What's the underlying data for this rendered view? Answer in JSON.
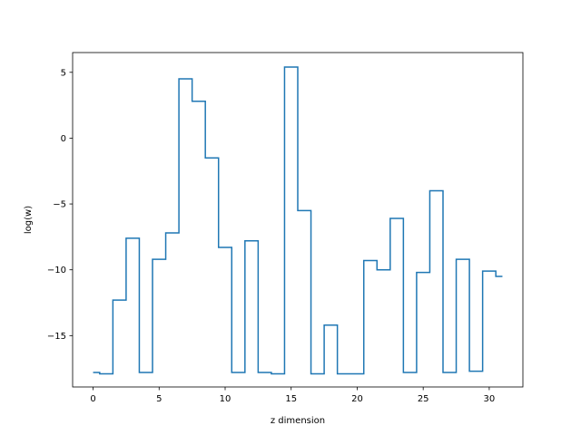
{
  "chart_data": {
    "type": "line",
    "drawstyle": "steps-mid",
    "xlabel": "z dimension",
    "ylabel": "log(w)",
    "xlim": [
      -1.55,
      32.55
    ],
    "ylim": [
      -18.9,
      6.5
    ],
    "xticks": [
      0,
      5,
      10,
      15,
      20,
      25,
      30
    ],
    "yticks": [
      -15,
      -10,
      -5,
      0,
      5
    ],
    "grid": false,
    "line_color": "#1f77b4",
    "series": [
      {
        "x": [
          0,
          1,
          2,
          3,
          4,
          5,
          6,
          7,
          8,
          9,
          10,
          11,
          12,
          13,
          14,
          15,
          16,
          17,
          18,
          19,
          20,
          21,
          22,
          23,
          24,
          25,
          26,
          27,
          28,
          29,
          30,
          31
        ],
        "values": [
          -17.8,
          -17.9,
          -12.3,
          -7.6,
          -17.8,
          -9.2,
          -7.2,
          4.5,
          2.8,
          -1.5,
          -8.3,
          -17.8,
          -7.8,
          -17.8,
          -17.9,
          5.4,
          -5.5,
          -17.9,
          -14.2,
          -17.9,
          -17.9,
          -9.3,
          -10.0,
          -6.1,
          -17.8,
          -10.2,
          -4.0,
          -17.8,
          -9.2,
          -17.7,
          -10.1,
          -10.5
        ]
      }
    ]
  }
}
